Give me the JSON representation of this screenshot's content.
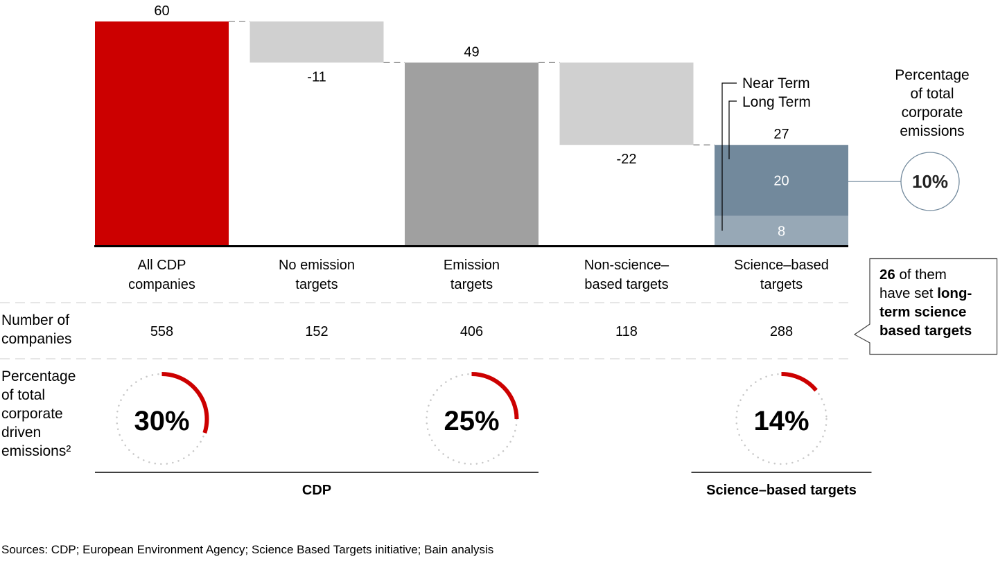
{
  "chart_data": {
    "type": "bar",
    "subtype": "waterfall",
    "categories": [
      "All CDP companies",
      "No emission targets",
      "Emission targets",
      "Non-science–based targets",
      "Science–based targets"
    ],
    "category_lines": [
      [
        "All CDP",
        "companies"
      ],
      [
        "No emission",
        "targets"
      ],
      [
        "Emission",
        "targets"
      ],
      [
        "Non-science–",
        "based targets"
      ],
      [
        "Science–based",
        "targets"
      ]
    ],
    "bars": [
      {
        "kind": "total",
        "value": 60,
        "label": "60",
        "color": "#cc0000"
      },
      {
        "kind": "delta",
        "value": -11,
        "label": "-11",
        "color": "#d0d0d0"
      },
      {
        "kind": "total",
        "value": 49,
        "label": "49",
        "color": "#a0a0a0"
      },
      {
        "kind": "delta",
        "value": -22,
        "label": "-22",
        "color": "#d0d0d0"
      },
      {
        "kind": "stacked",
        "value": 27,
        "label": "27",
        "segments": [
          {
            "name": "Near Term",
            "value": 8,
            "label": "8",
            "color": "#97a8b6"
          },
          {
            "name": "Long Term",
            "value": 20,
            "label": "20",
            "color": "#72899c"
          }
        ]
      }
    ],
    "legend": [
      "Near Term",
      "Long Term"
    ],
    "ylim": [
      0,
      60
    ],
    "grid": false,
    "share_callout": {
      "title_lines": [
        "Percentage",
        "of total",
        "corporate",
        "emissions"
      ],
      "value": 10,
      "label": "10%"
    },
    "number_of_companies": {
      "label_lines": [
        "Number of",
        "companies"
      ],
      "values": [
        558,
        152,
        406,
        118,
        288
      ]
    },
    "share_of_emissions": {
      "label_lines": [
        "Percentage",
        "of total",
        "corporate",
        "driven",
        "emissions²"
      ],
      "donuts": [
        {
          "category_index": 0,
          "value": 30,
          "label": "30%"
        },
        {
          "category_index": 2,
          "value": 25,
          "label": "25%"
        },
        {
          "category_index": 4,
          "value": 14,
          "label": "14%"
        }
      ],
      "accent_color": "#cc0000"
    },
    "group_brackets": [
      {
        "label": "CDP",
        "from_category": 0,
        "to_category": 2
      },
      {
        "label": "Science–based targets",
        "from_category": 4,
        "to_category": 4
      }
    ]
  },
  "callout": {
    "count": "26",
    "text_1": " of them",
    "text_2": "have set ",
    "bold_2": "long-",
    "bold_3": "term science",
    "bold_4": "based targets"
  },
  "source": "Sources: CDP; European Environment Agency; Science Based Targets initiative; Bain analysis"
}
